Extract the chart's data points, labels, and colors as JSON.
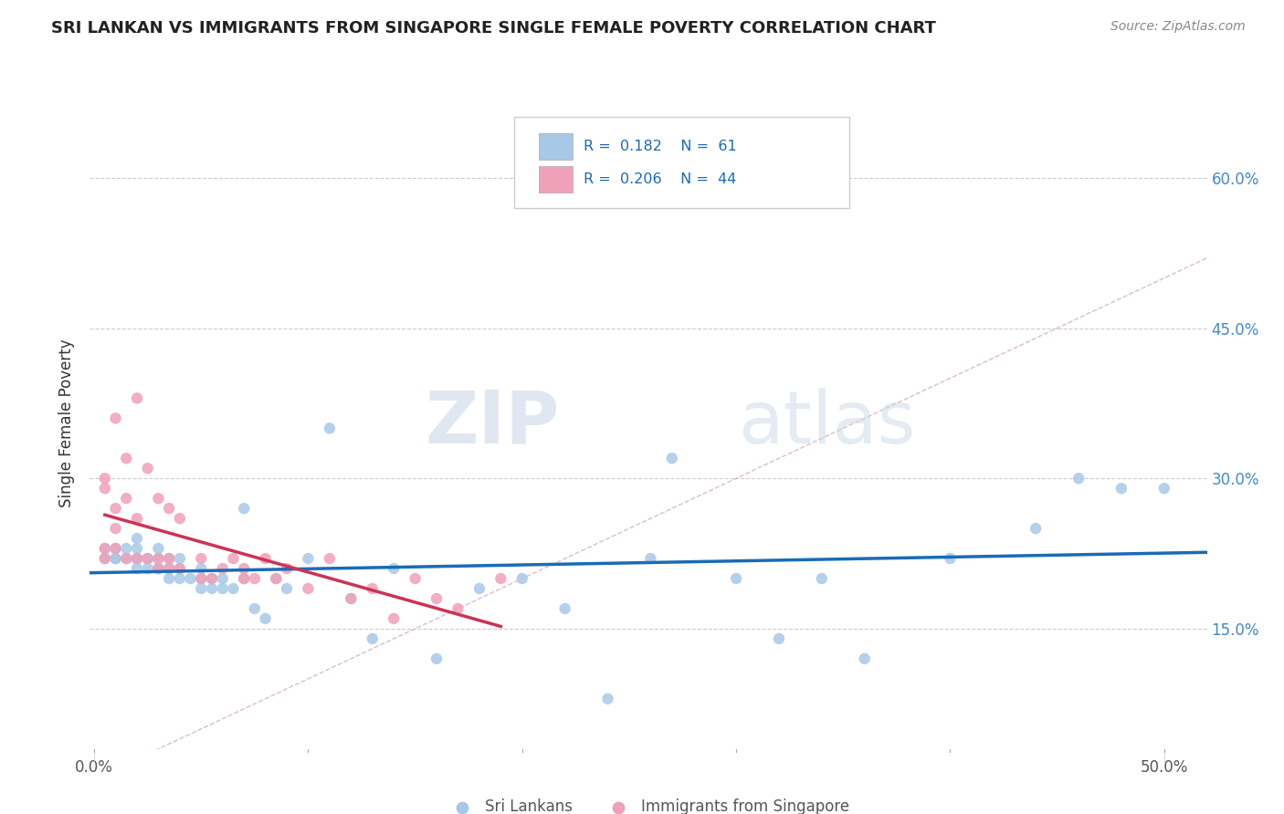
{
  "title": "SRI LANKAN VS IMMIGRANTS FROM SINGAPORE SINGLE FEMALE POVERTY CORRELATION CHART",
  "source": "Source: ZipAtlas.com",
  "ylabel": "Single Female Poverty",
  "ytick_vals": [
    0.15,
    0.3,
    0.45,
    0.6
  ],
  "ytick_labels": [
    "15.0%",
    "30.0%",
    "45.0%",
    "60.0%"
  ],
  "xlim": [
    -0.002,
    0.52
  ],
  "ylim": [
    0.03,
    0.68
  ],
  "legend_r1": "R =  0.182",
  "legend_n1": "N =  61",
  "legend_r2": "R =  0.206",
  "legend_n2": "N =  44",
  "sri_lankan_color": "#a8c8e8",
  "immigrant_color": "#f0a0b8",
  "trendline_sri_color": "#1a6bb5",
  "trendline_imm_color": "#cc3355",
  "diag_color": "#d8b8c8",
  "watermark_zip": "ZIP",
  "watermark_atlas": "atlas",
  "bottom_legend_labels": [
    "Sri Lankans",
    "Immigrants from Singapore"
  ],
  "sri_lankans_x": [
    0.005,
    0.005,
    0.01,
    0.01,
    0.01,
    0.015,
    0.015,
    0.02,
    0.02,
    0.02,
    0.02,
    0.02,
    0.025,
    0.025,
    0.025,
    0.03,
    0.03,
    0.03,
    0.03,
    0.035,
    0.035,
    0.035,
    0.04,
    0.04,
    0.04,
    0.045,
    0.05,
    0.05,
    0.05,
    0.055,
    0.055,
    0.06,
    0.06,
    0.065,
    0.07,
    0.07,
    0.075,
    0.08,
    0.085,
    0.09,
    0.1,
    0.11,
    0.12,
    0.13,
    0.14,
    0.16,
    0.18,
    0.2,
    0.22,
    0.24,
    0.26,
    0.27,
    0.3,
    0.32,
    0.34,
    0.36,
    0.4,
    0.44,
    0.46,
    0.48,
    0.5
  ],
  "sri_lankans_y": [
    0.22,
    0.23,
    0.22,
    0.22,
    0.23,
    0.22,
    0.23,
    0.21,
    0.22,
    0.22,
    0.23,
    0.24,
    0.21,
    0.22,
    0.22,
    0.21,
    0.21,
    0.22,
    0.23,
    0.2,
    0.21,
    0.22,
    0.2,
    0.21,
    0.22,
    0.2,
    0.19,
    0.2,
    0.21,
    0.19,
    0.2,
    0.19,
    0.2,
    0.19,
    0.2,
    0.27,
    0.17,
    0.16,
    0.2,
    0.19,
    0.22,
    0.35,
    0.18,
    0.14,
    0.21,
    0.12,
    0.19,
    0.2,
    0.17,
    0.08,
    0.22,
    0.32,
    0.2,
    0.14,
    0.2,
    0.12,
    0.22,
    0.25,
    0.3,
    0.29,
    0.29
  ],
  "immigrants_x": [
    0.005,
    0.005,
    0.005,
    0.005,
    0.01,
    0.01,
    0.01,
    0.01,
    0.015,
    0.015,
    0.015,
    0.02,
    0.02,
    0.02,
    0.025,
    0.025,
    0.03,
    0.03,
    0.03,
    0.035,
    0.035,
    0.035,
    0.04,
    0.04,
    0.05,
    0.05,
    0.055,
    0.06,
    0.065,
    0.07,
    0.07,
    0.075,
    0.08,
    0.085,
    0.09,
    0.1,
    0.11,
    0.12,
    0.13,
    0.14,
    0.15,
    0.16,
    0.17,
    0.19
  ],
  "immigrants_y": [
    0.22,
    0.23,
    0.29,
    0.3,
    0.23,
    0.25,
    0.27,
    0.36,
    0.22,
    0.28,
    0.32,
    0.22,
    0.26,
    0.38,
    0.22,
    0.31,
    0.21,
    0.22,
    0.28,
    0.21,
    0.22,
    0.27,
    0.21,
    0.26,
    0.2,
    0.22,
    0.2,
    0.21,
    0.22,
    0.2,
    0.21,
    0.2,
    0.22,
    0.2,
    0.21,
    0.19,
    0.22,
    0.18,
    0.19,
    0.16,
    0.2,
    0.18,
    0.17,
    0.2
  ]
}
